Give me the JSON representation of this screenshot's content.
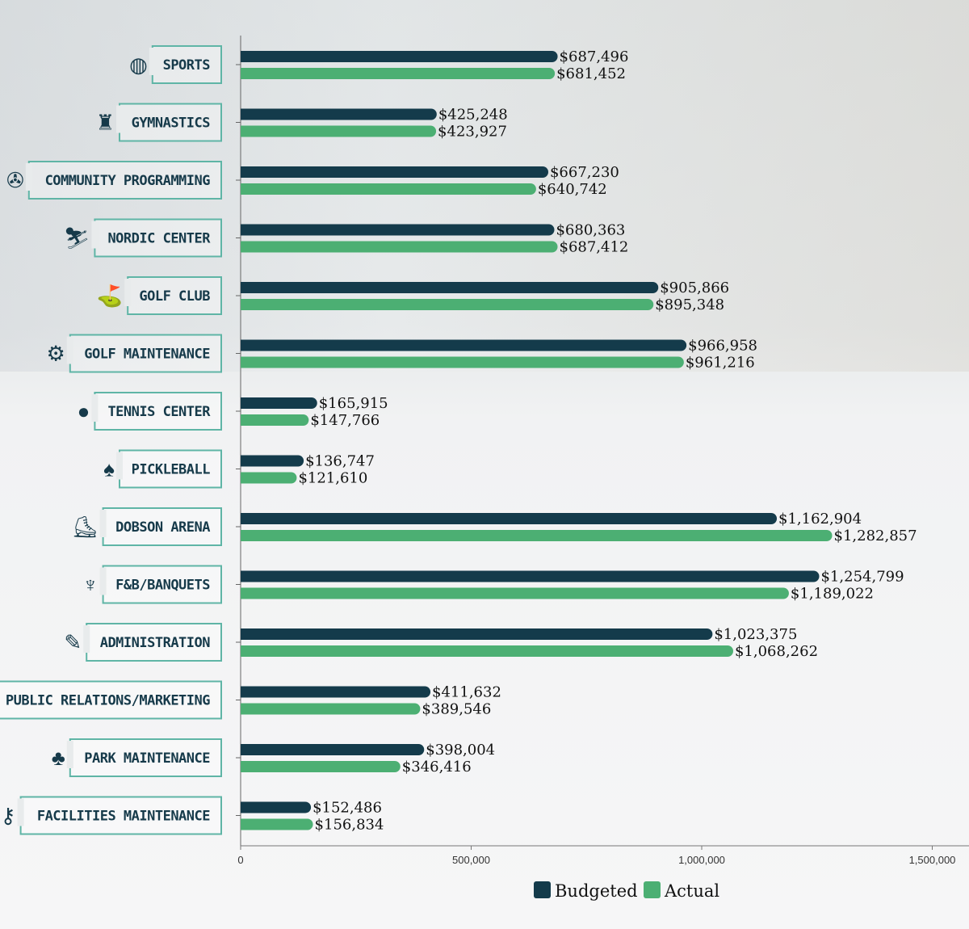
{
  "chart_data": {
    "type": "bar",
    "orientation": "horizontal",
    "title": "",
    "xlabel": "",
    "ylabel": "",
    "xlim": [
      0,
      1570000
    ],
    "x_ticks": [
      0,
      500000,
      1000000,
      1500000
    ],
    "x_tick_labels": [
      "0",
      "500,000",
      "1,000,000",
      "1,500,000"
    ],
    "grid": false,
    "legend_position": "bottom-center",
    "categories": [
      "SPORTS",
      "GYMNASTICS",
      "COMMUNITY PROGRAMMING",
      "NORDIC CENTER",
      "GOLF CLUB",
      "GOLF MAINTENANCE",
      "TENNIS CENTER",
      "PICKLEBALL",
      "DOBSON ARENA",
      "F&B/BANQUETS",
      "ADMINISTRATION",
      "PUBLIC RELATIONS/MARKETING",
      "PARK MAINTENANCE",
      "FACILITIES MAINTENANCE"
    ],
    "category_icons": [
      "basketball-icon",
      "gymnast-rings-icon",
      "film-reel-icon",
      "skier-icon",
      "golf-flag-icon",
      "mower-icon",
      "tennis-ball-icon",
      "paddle-icon",
      "ice-skate-icon",
      "wine-glass-icon",
      "document-pen-icon",
      "megaphone-icon",
      "trees-icon",
      "keys-icon"
    ],
    "series": [
      {
        "name": "Budgeted",
        "color": "#143b4b",
        "values": [
          687496,
          425248,
          667230,
          680363,
          905866,
          966958,
          165915,
          136747,
          1162904,
          1254799,
          1023375,
          411632,
          398004,
          152486
        ],
        "labels": [
          "$687,496",
          "$425,248",
          "$667,230",
          "$680,363",
          "$905,866",
          "$966,958",
          "$165,915",
          "$136,747",
          "$1,162,904",
          "$1,254,799",
          "$1,023,375",
          "$411,632",
          "$398,004",
          "$152,486"
        ]
      },
      {
        "name": "Actual",
        "color": "#4caf73",
        "values": [
          681452,
          423927,
          640742,
          687412,
          895348,
          961216,
          147766,
          121610,
          1282857,
          1189022,
          1068262,
          389546,
          346416,
          156834
        ],
        "labels": [
          "$681,452",
          "$423,927",
          "$640,742",
          "$687,412",
          "$895,348",
          "$961,216",
          "$147,766",
          "$121,610",
          "$1,282,857",
          "$1,189,022",
          "$1,068,262",
          "$389,546",
          "$346,416",
          "$156,834"
        ]
      }
    ]
  }
}
